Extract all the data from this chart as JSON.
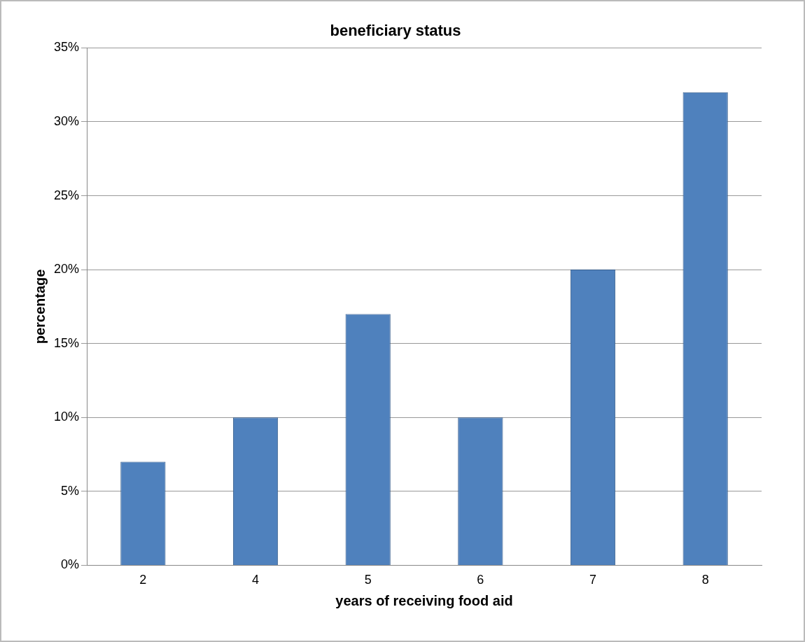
{
  "chart_data": {
    "type": "bar",
    "title": "beneficiary status",
    "xlabel": "years of receiving food aid",
    "ylabel": "percentage",
    "categories": [
      "2",
      "4",
      "5",
      "6",
      "7",
      "8"
    ],
    "values": [
      7,
      10,
      17,
      10,
      20,
      32
    ],
    "color": "#4f81bd",
    "ylim": [
      0,
      35
    ],
    "yticks": [
      {
        "value": 0,
        "label": "0%"
      },
      {
        "value": 5,
        "label": "5%"
      },
      {
        "value": 10,
        "label": "10%"
      },
      {
        "value": 15,
        "label": "15%"
      },
      {
        "value": 20,
        "label": "20%"
      },
      {
        "value": 25,
        "label": "25%"
      },
      {
        "value": 30,
        "label": "30%"
      },
      {
        "value": 35,
        "label": "35%"
      }
    ],
    "grid": "y",
    "legend": false
  }
}
